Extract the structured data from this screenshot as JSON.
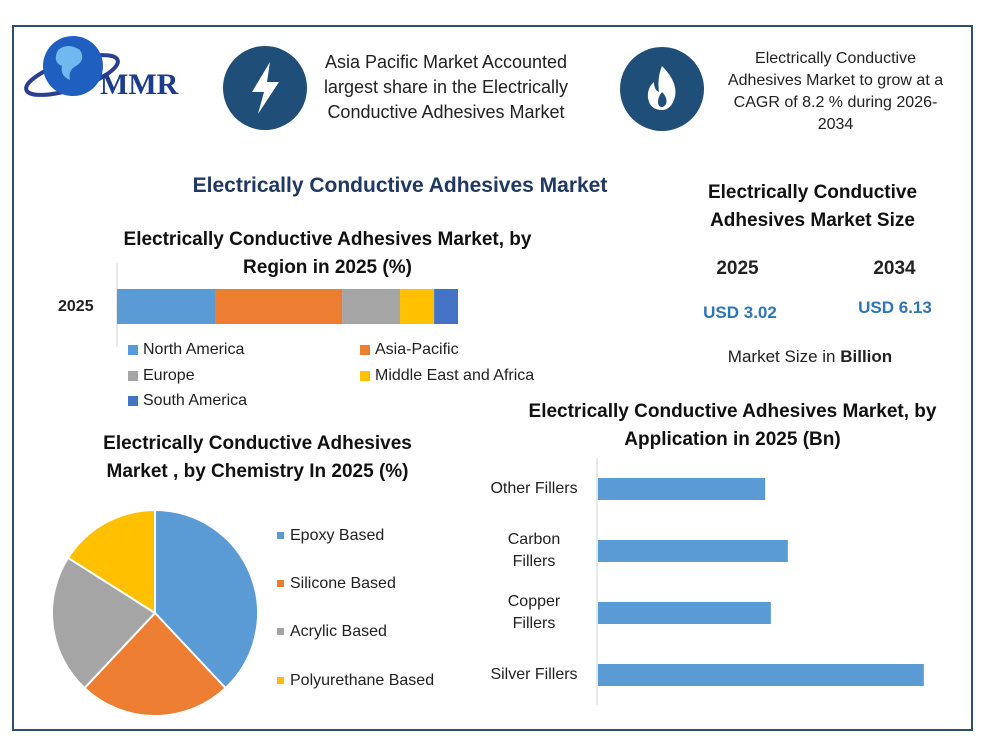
{
  "header": {
    "logo": "MMR",
    "highlight_1": "Asia Pacific Market Accounted largest share in the Electrically Conductive Adhesives Market",
    "highlight_2": "Electrically Conductive Adhesives Market to grow at a CAGR of 8.2 % during 2026-2034",
    "title": "Electrically Conductive Adhesives Market"
  },
  "market_size": {
    "title": "Electrically Conductive Adhesives Market Size",
    "year_1": "2025",
    "year_2": "2034",
    "value_1": "USD 3.02",
    "value_2": "USD 6.13",
    "unit_text": "Market Size in",
    "unit_bold": "Billion"
  },
  "chart_data": [
    {
      "type": "stacked_bar",
      "title": "Electrically Conductive Adhesives Market, by Region in 2025 (%)",
      "categories": [
        "2025"
      ],
      "xlim": [
        0,
        100
      ],
      "series": [
        {
          "name": "North America",
          "color": "#5b9bd5",
          "values": [
            29
          ]
        },
        {
          "name": "Asia-Pacific",
          "color": "#ed7d31",
          "values": [
            37
          ]
        },
        {
          "name": "Europe",
          "color": "#a5a5a5",
          "values": [
            17
          ]
        },
        {
          "name": "Middle East and Africa",
          "color": "#ffc000",
          "values": [
            10
          ]
        },
        {
          "name": "South America",
          "color": "#4472c4",
          "values": [
            7
          ]
        }
      ]
    },
    {
      "type": "pie",
      "title": "Electrically Conductive Adhesives Market , by Chemistry In 2025 (%)",
      "categories": [
        "Epoxy Based",
        "Silicone Based",
        "Acrylic Based",
        "Polyurethane Based"
      ],
      "values": [
        38,
        24,
        22,
        16
      ],
      "colors": [
        "#5b9bd5",
        "#ed7d31",
        "#a5a5a5",
        "#ffc000"
      ]
    },
    {
      "type": "hbar",
      "title": "Electrically Conductive Adhesives Market, by Application in 2025 (Bn)",
      "categories": [
        "Other Fillers",
        "Carbon Fillers",
        "Copper Fillers",
        "Silver Fillers"
      ],
      "values": [
        0.59,
        0.67,
        0.61,
        1.15
      ],
      "color": "#5b9bd5",
      "xlim": [
        0,
        1.2
      ]
    }
  ]
}
